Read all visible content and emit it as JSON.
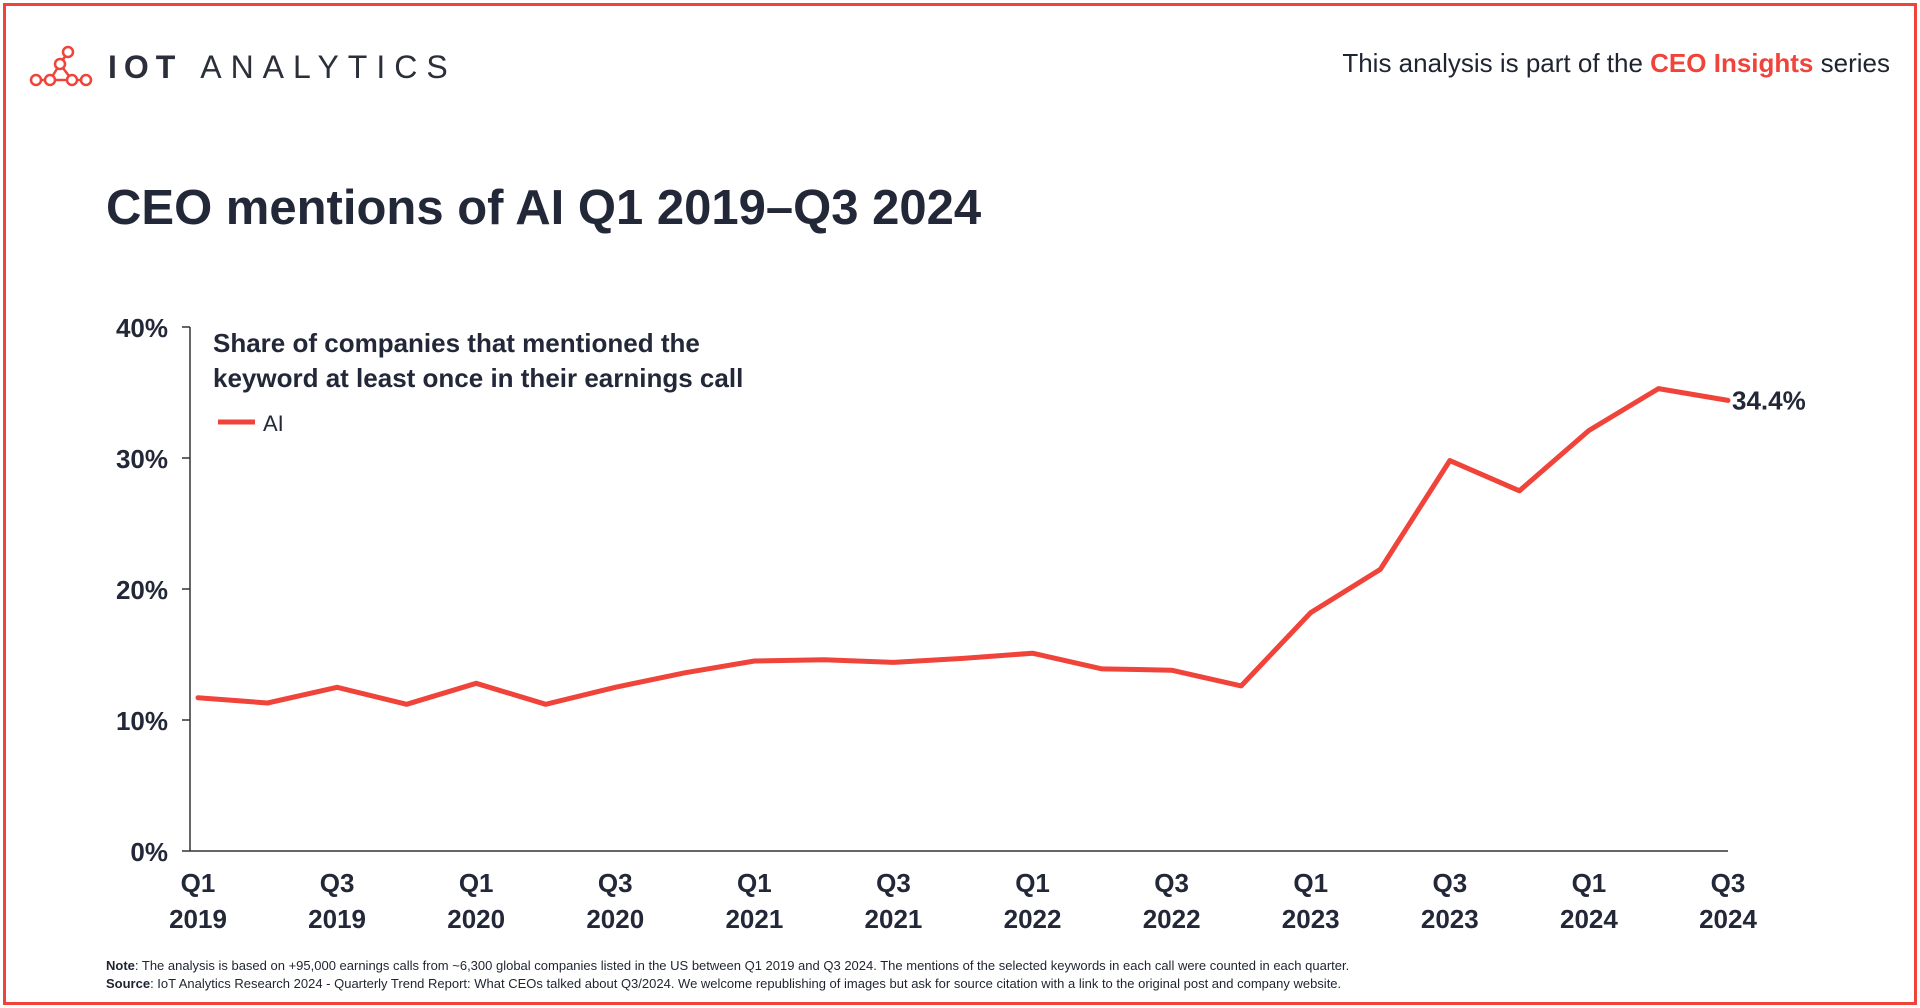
{
  "header": {
    "logo_text_bold": "IOT",
    "logo_text": "ANALYTICS",
    "series_prefix": "This analysis is part of the",
    "series_name": "CEO Insights",
    "series_suffix": "series"
  },
  "colors": {
    "accent": "#f0433a",
    "text": "#232838",
    "axis": "#333333"
  },
  "chart_data": {
    "type": "line",
    "title": "CEO mentions of AI Q1 2019–Q3 2024",
    "subtitle_lines": [
      "Share of companies that mentioned the",
      "keyword at least once in their earnings call"
    ],
    "legend_position": "top-left",
    "grid": false,
    "ylim": [
      0,
      40
    ],
    "yticks": [
      "0%",
      "10%",
      "20%",
      "30%",
      "40%"
    ],
    "xticks": [
      {
        "q": "Q1",
        "y": "2019"
      },
      {
        "q": "Q3",
        "y": "2019"
      },
      {
        "q": "Q1",
        "y": "2020"
      },
      {
        "q": "Q3",
        "y": "2020"
      },
      {
        "q": "Q1",
        "y": "2021"
      },
      {
        "q": "Q3",
        "y": "2021"
      },
      {
        "q": "Q1",
        "y": "2022"
      },
      {
        "q": "Q3",
        "y": "2022"
      },
      {
        "q": "Q1",
        "y": "2023"
      },
      {
        "q": "Q3",
        "y": "2023"
      },
      {
        "q": "Q1",
        "y": "2024"
      },
      {
        "q": "Q3",
        "y": "2024"
      }
    ],
    "categories": [
      "Q1 2019",
      "Q2 2019",
      "Q3 2019",
      "Q4 2019",
      "Q1 2020",
      "Q2 2020",
      "Q3 2020",
      "Q4 2020",
      "Q1 2021",
      "Q2 2021",
      "Q3 2021",
      "Q4 2021",
      "Q1 2022",
      "Q2 2022",
      "Q3 2022",
      "Q4 2022",
      "Q1 2023",
      "Q2 2023",
      "Q3 2023",
      "Q4 2023",
      "Q1 2024",
      "Q2 2024",
      "Q3 2024"
    ],
    "series": [
      {
        "name": "AI",
        "color": "#f0433a",
        "values": [
          11.7,
          11.3,
          12.5,
          11.2,
          12.8,
          11.2,
          12.5,
          13.6,
          14.5,
          14.6,
          14.4,
          14.7,
          15.1,
          13.9,
          13.8,
          12.6,
          18.2,
          21.5,
          29.8,
          27.5,
          32.1,
          35.3,
          34.4
        ],
        "end_label": "34.4%"
      }
    ]
  },
  "footnotes": {
    "note_label": "Note",
    "note_text": ": The analysis is based on +95,000 earnings calls from ~6,300 global companies listed in the US between Q1 2019 and Q3 2024. The mentions of the selected keywords in each call were counted in each quarter.",
    "source_label": "Source",
    "source_text": ": IoT Analytics Research 2024 - Quarterly Trend Report: What CEOs talked about Q3/2024. We welcome republishing of images but ask for source citation with a link to the original post and company website."
  }
}
